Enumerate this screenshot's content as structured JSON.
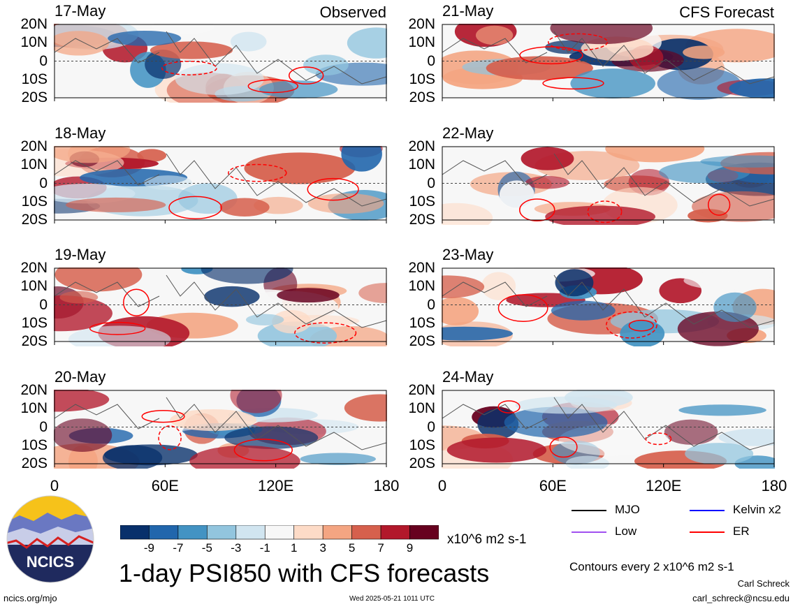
{
  "figure": {
    "title": "1-day PSI850 with CFS forecasts",
    "observed_label": "Observed",
    "forecast_label": "CFS Forecast",
    "colorbar_units": "x10^6 m2 s-1",
    "contour_note": "Contours every 2 x10^6 m2 s-1",
    "author": "Carl Schreck",
    "email": "carl_schreck@ncsu.edu",
    "url": "ncics.org/mjo",
    "timestamp": "Wed 2025-05-21 1011 UTC",
    "logo_text": "NCICS"
  },
  "legend": [
    {
      "label": "MJO",
      "color": "#000000"
    },
    {
      "label": "Kelvin x2",
      "color": "#0000ff"
    },
    {
      "label": "Low",
      "color": "#a050f0"
    },
    {
      "label": "ER",
      "color": "#ff0000"
    }
  ],
  "chart_data": {
    "type": "heatmap",
    "variable": "PSI850",
    "y_ticks": [
      "20N",
      "10N",
      "0",
      "10S",
      "20S"
    ],
    "x_ticks": [
      "0",
      "60E",
      "120E",
      "180"
    ],
    "xlim": [
      0,
      180
    ],
    "ylim": [
      -20,
      20
    ],
    "colorbar": {
      "ticks": [
        "-9",
        "-7",
        "-5",
        "-3",
        "-1",
        "1",
        "3",
        "5",
        "7",
        "9"
      ],
      "colors": [
        "#08306b",
        "#2166ac",
        "#4393c3",
        "#92c5de",
        "#d1e5f0",
        "#f7f7f7",
        "#fddbc7",
        "#f4a582",
        "#d6604d",
        "#b2182b",
        "#67001f"
      ]
    },
    "panels": [
      {
        "date": "17-May",
        "type": "observed"
      },
      {
        "date": "18-May",
        "type": "observed"
      },
      {
        "date": "19-May",
        "type": "observed"
      },
      {
        "date": "20-May",
        "type": "observed"
      },
      {
        "date": "21-May",
        "type": "forecast"
      },
      {
        "date": "22-May",
        "type": "forecast"
      },
      {
        "date": "23-May",
        "type": "forecast"
      },
      {
        "date": "24-May",
        "type": "forecast"
      }
    ]
  }
}
